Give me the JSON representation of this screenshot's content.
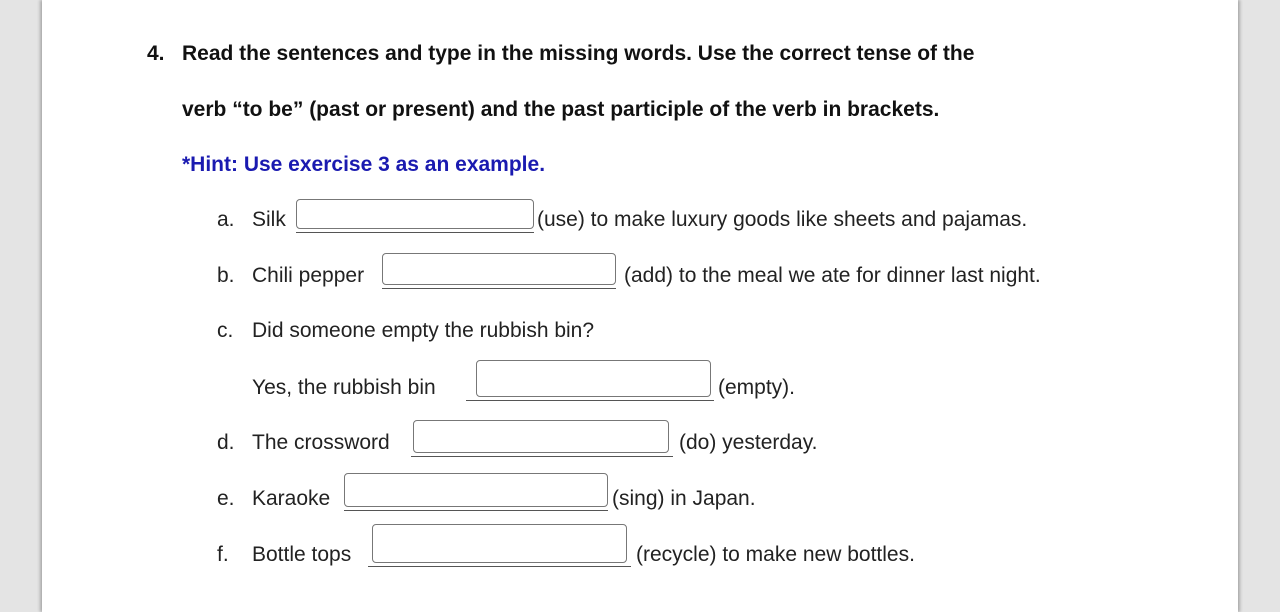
{
  "question": {
    "number": "4.",
    "line1": "Read the sentences and type in the missing words. Use the correct tense of the",
    "line2": "verb “to be” (past or present) and the past participle of the verb in brackets.",
    "hint": "*Hint: Use exercise 3 as an example."
  },
  "items": [
    {
      "letter": "a.",
      "before": "Silk",
      "after": "(use) to make luxury goods like sheets and pajamas.",
      "value": ""
    },
    {
      "letter": "b.",
      "before": "Chili pepper",
      "after": "(add) to the meal we ate for dinner last night.",
      "value": ""
    },
    {
      "letter": "c.",
      "question": "Did someone empty the rubbish bin?",
      "before": "Yes, the rubbish bin",
      "after": "(empty).",
      "value": ""
    },
    {
      "letter": "d.",
      "before": "The crossword",
      "after": "(do) yesterday.",
      "value": ""
    },
    {
      "letter": "e.",
      "before": "Karaoke",
      "after": "(sing) in Japan.",
      "value": ""
    },
    {
      "letter": "f.",
      "before": "Bottle tops",
      "after": "(recycle) to make new bottles.",
      "value": ""
    }
  ]
}
